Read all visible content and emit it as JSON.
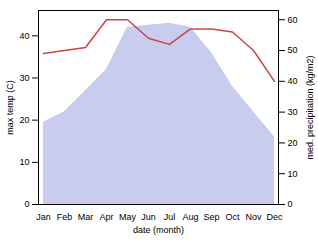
{
  "chart_data": {
    "type": "line",
    "categories": [
      "Jan",
      "Feb",
      "Mar",
      "Apr",
      "May",
      "Jun",
      "Jul",
      "Aug",
      "Sep",
      "Oct",
      "Nov",
      "Dec"
    ],
    "series": [
      {
        "type": "area",
        "color": "#c8ccee",
        "values": [
          19.5,
          22.0,
          27.0,
          32.0,
          42.0,
          42.5,
          43.0,
          42.0,
          36.0,
          28.0,
          22.0,
          16.0
        ]
      },
      {
        "type": "line",
        "axis": "y2",
        "color": "#cc4444",
        "values": [
          49,
          50,
          51,
          60,
          60,
          54,
          52,
          57,
          57,
          56,
          50,
          40
        ]
      }
    ],
    "xlabel": "date (month)",
    "ylabel": "max temp (C)",
    "y2label": "med. precipitation (kg/m2)",
    "ylim": [
      0,
      46
    ],
    "yticks": [
      0,
      10,
      20,
      30,
      40
    ],
    "y2lim": [
      0,
      63
    ],
    "y2ticks": [
      0,
      10,
      20,
      30,
      40,
      50,
      60
    ],
    "grid": false
  }
}
